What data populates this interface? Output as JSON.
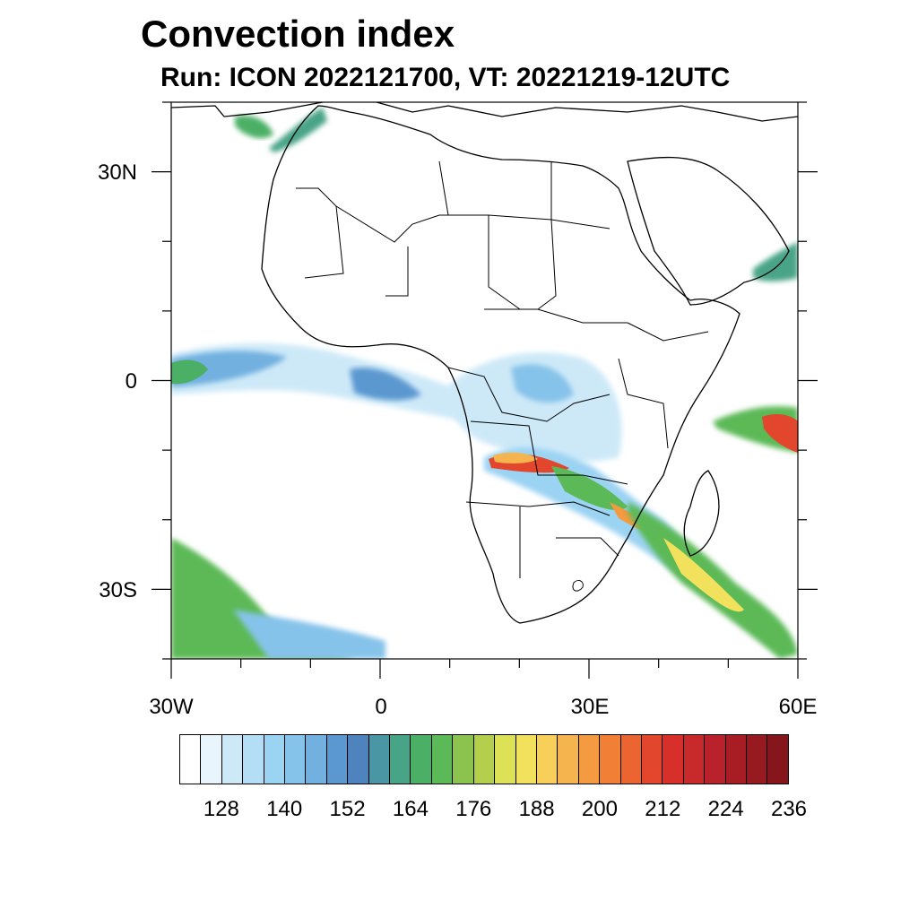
{
  "title": "Convection index",
  "subtitle": "Run: ICON 2022121700,  VT: 20221219-12UTC",
  "axes": {
    "lat_labels": [
      "30N",
      "0",
      "30S"
    ],
    "lon_labels": [
      "30W",
      "0",
      "30E",
      "60E"
    ],
    "lat_range": [
      -40,
      40
    ],
    "lon_range": [
      -30,
      60
    ]
  },
  "colorbar": {
    "colors": [
      "#ffffff",
      "#e8f5fc",
      "#cde9f8",
      "#b4def6",
      "#9bd3f3",
      "#86c3ea",
      "#72b0e0",
      "#5b98d0",
      "#4f83bd",
      "#4a96a5",
      "#48a487",
      "#4bb066",
      "#5cb957",
      "#8cc34f",
      "#b3cf4c",
      "#dde155",
      "#f1e15c",
      "#f8cf58",
      "#f5b44d",
      "#f49a40",
      "#f17f35",
      "#ec642f",
      "#e2462d",
      "#d7302b",
      "#c82a2c",
      "#b9222a",
      "#a81d24",
      "#961a1f",
      "#85161b"
    ],
    "tick_labels": [
      "128",
      "140",
      "152",
      "164",
      "176",
      "188",
      "200",
      "212",
      "224",
      "236"
    ],
    "tick_values": [
      128,
      140,
      152,
      164,
      176,
      188,
      200,
      212,
      224,
      236
    ]
  }
}
